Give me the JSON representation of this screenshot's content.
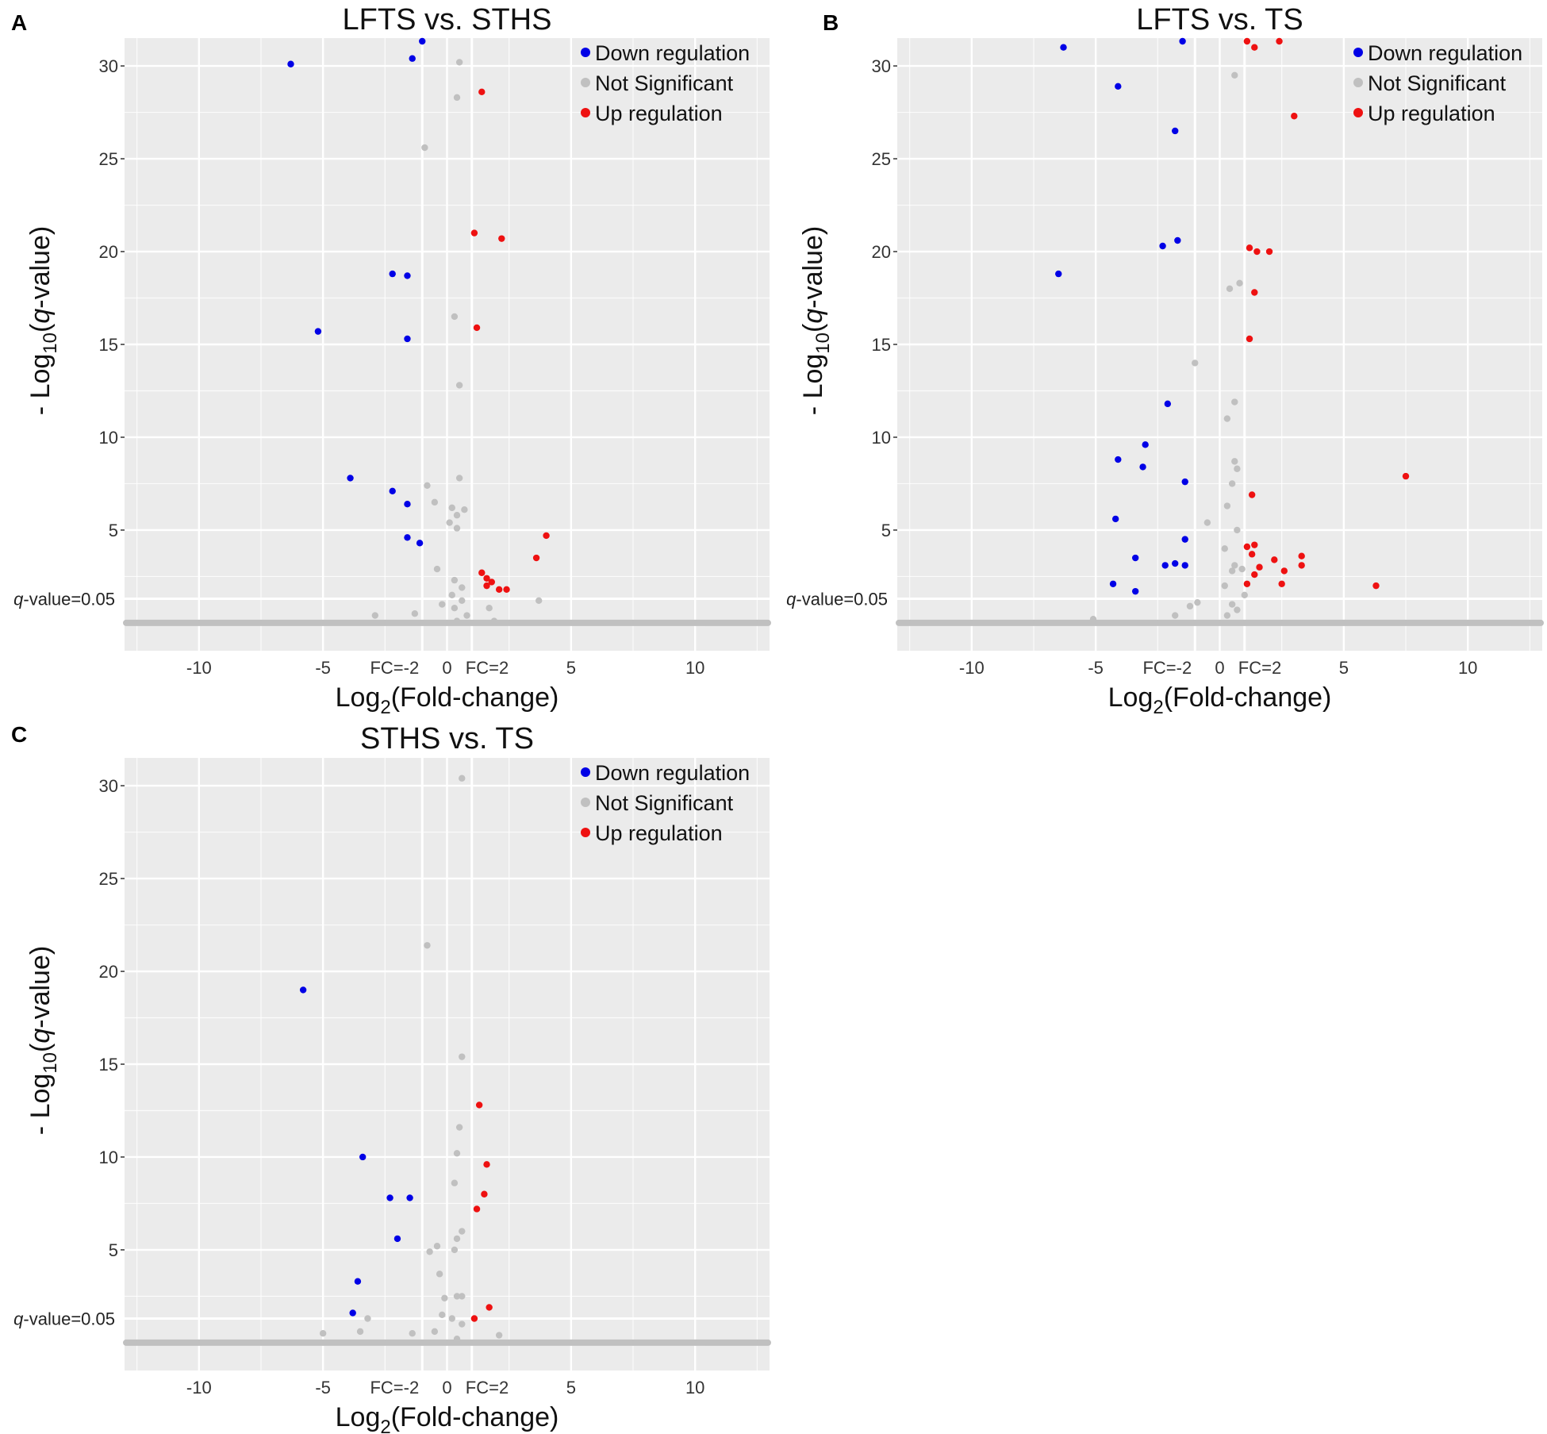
{
  "colors": {
    "down": "#0000e6",
    "ns": "#c0c0c0",
    "up": "#ee1111",
    "panel_bg": "#ebebeb",
    "grid": "#ffffff"
  },
  "chart_data": [
    {
      "type": "scatter",
      "panel": "A",
      "title": "LFTS vs. STHS",
      "xlabel_main": "Log",
      "xlabel_sub": "2",
      "xlabel_tail": "(Fold-change)",
      "ylabel_head": "- Log",
      "ylabel_sub": "10",
      "ylabel_mid": "(",
      "ylabel_italic": "q",
      "ylabel_tail": "-value)",
      "xlim": [
        -13,
        13
      ],
      "ylim": [
        -1.5,
        31.5
      ],
      "x_ticks": [
        -10,
        -5,
        0,
        5,
        10
      ],
      "y_ticks": [
        5,
        10,
        15,
        20,
        25,
        30
      ],
      "fc_labels": {
        "neg": "FC=-2",
        "zero": "0",
        "pos": "FC=2"
      },
      "threshold_label_italic": "q",
      "threshold_label_tail": "-value=0.05",
      "threshold_y": 1.3,
      "legend": [
        "Down regulation",
        "Not Significant",
        "Up regulation"
      ],
      "series": [
        {
          "name": "Down regulation",
          "points": [
            [
              -1,
              31.5
            ],
            [
              -6.3,
              30.1
            ],
            [
              -1.4,
              30.4
            ],
            [
              -2.2,
              18.8
            ],
            [
              -1.6,
              18.7
            ],
            [
              -5.2,
              15.7
            ],
            [
              -1.6,
              15.3
            ],
            [
              -3.9,
              7.8
            ],
            [
              -2.2,
              7.1
            ],
            [
              -1.6,
              6.4
            ],
            [
              -1.6,
              4.6
            ],
            [
              -1.1,
              4.3
            ]
          ]
        },
        {
          "name": "Not Significant",
          "points": [
            [
              0.5,
              30.2
            ],
            [
              0.4,
              28.3
            ],
            [
              -0.9,
              25.6
            ],
            [
              0.3,
              16.5
            ],
            [
              0.5,
              12.8
            ],
            [
              -0.8,
              7.4
            ],
            [
              0.5,
              7.8
            ],
            [
              -0.5,
              6.5
            ],
            [
              0.2,
              6.2
            ],
            [
              0.7,
              6.1
            ],
            [
              0.4,
              5.8
            ],
            [
              0.1,
              5.4
            ],
            [
              0.4,
              5.1
            ],
            [
              -0.4,
              2.9
            ],
            [
              0.3,
              2.3
            ],
            [
              0.6,
              1.9
            ],
            [
              0.2,
              1.5
            ],
            [
              0.6,
              1.2
            ],
            [
              0.3,
              0.8
            ],
            [
              -0.2,
              1.0
            ],
            [
              1.7,
              0.8
            ],
            [
              3.7,
              1.2
            ],
            [
              -2.9,
              0.4
            ],
            [
              -1.3,
              0.5
            ],
            [
              0.4,
              0.1
            ],
            [
              1.9,
              0.1
            ],
            [
              0.8,
              0.4
            ]
          ]
        },
        {
          "name": "Up regulation",
          "points": [
            [
              1.4,
              28.6
            ],
            [
              1.1,
              21.0
            ],
            [
              2.2,
              20.7
            ],
            [
              1.2,
              15.9
            ],
            [
              4,
              4.7
            ],
            [
              3.6,
              3.5
            ],
            [
              1.4,
              2.7
            ],
            [
              1.6,
              2.4
            ],
            [
              1.8,
              2.2
            ],
            [
              1.6,
              2.0
            ],
            [
              2.1,
              1.8
            ],
            [
              2.4,
              1.8
            ]
          ]
        }
      ]
    },
    {
      "type": "scatter",
      "panel": "B",
      "title": "LFTS vs. TS",
      "xlabel_main": "Log",
      "xlabel_sub": "2",
      "xlabel_tail": "(Fold-change)",
      "ylabel_head": "- Log",
      "ylabel_sub": "10",
      "ylabel_mid": "(",
      "ylabel_italic": "q",
      "ylabel_tail": "-value)",
      "xlim": [
        -13,
        13
      ],
      "ylim": [
        -1.5,
        31.5
      ],
      "x_ticks": [
        -10,
        -5,
        0,
        5,
        10
      ],
      "y_ticks": [
        5,
        10,
        15,
        20,
        25,
        30
      ],
      "fc_labels": {
        "neg": "FC=-2",
        "zero": "0",
        "pos": "FC=2"
      },
      "threshold_label_italic": "q",
      "threshold_label_tail": "-value=0.05",
      "threshold_y": 1.3,
      "legend": [
        "Down regulation",
        "Not Significant",
        "Up regulation"
      ],
      "series": [
        {
          "name": "Down regulation",
          "points": [
            [
              -1.5,
              31.5
            ],
            [
              -6.3,
              31.0
            ],
            [
              -4.1,
              28.9
            ],
            [
              -1.8,
              26.5
            ],
            [
              -2.3,
              20.3
            ],
            [
              -1.7,
              20.6
            ],
            [
              -6.5,
              18.8
            ],
            [
              -2.1,
              11.8
            ],
            [
              -4.1,
              8.8
            ],
            [
              -3,
              9.6
            ],
            [
              -3.1,
              8.4
            ],
            [
              -1.4,
              7.6
            ],
            [
              -4.2,
              5.6
            ],
            [
              -1.4,
              4.5
            ],
            [
              -3.4,
              3.5
            ],
            [
              -2.2,
              3.1
            ],
            [
              -1.8,
              3.2
            ],
            [
              -1.4,
              3.1
            ],
            [
              -4.3,
              2.1
            ],
            [
              -3.4,
              1.7
            ]
          ]
        },
        {
          "name": "Not Significant",
          "points": [
            [
              0.6,
              29.5
            ],
            [
              0.8,
              18.3
            ],
            [
              0.4,
              18.0
            ],
            [
              -1,
              14.0
            ],
            [
              0.6,
              11.9
            ],
            [
              0.3,
              11.0
            ],
            [
              0.6,
              8.7
            ],
            [
              0.7,
              8.3
            ],
            [
              0.5,
              7.5
            ],
            [
              0.3,
              6.3
            ],
            [
              -0.5,
              5.4
            ],
            [
              0.7,
              5.0
            ],
            [
              0.2,
              4.0
            ],
            [
              0.6,
              3.1
            ],
            [
              0.5,
              2.8
            ],
            [
              0.9,
              2.9
            ],
            [
              0.2,
              2.0
            ],
            [
              1,
              1.5
            ],
            [
              0.5,
              1.0
            ],
            [
              0.7,
              0.7
            ],
            [
              -1.2,
              0.9
            ],
            [
              -1.8,
              0.4
            ],
            [
              -5.1,
              0.2
            ],
            [
              -0.9,
              1.1
            ],
            [
              0.3,
              0.4
            ]
          ]
        },
        {
          "name": "Up regulation",
          "points": [
            [
              1.1,
              31.5
            ],
            [
              2.4,
              31.5
            ],
            [
              1.4,
              31.0
            ],
            [
              3,
              27.3
            ],
            [
              1.2,
              20.2
            ],
            [
              1.5,
              20.0
            ],
            [
              2,
              20.0
            ],
            [
              1.4,
              17.8
            ],
            [
              1.2,
              15.3
            ],
            [
              1.3,
              6.9
            ],
            [
              1.1,
              4.1
            ],
            [
              1.4,
              4.2
            ],
            [
              1.3,
              3.7
            ],
            [
              1.6,
              3.0
            ],
            [
              2.2,
              3.4
            ],
            [
              3.3,
              3.6
            ],
            [
              3.3,
              3.1
            ],
            [
              2.6,
              2.8
            ],
            [
              1.4,
              2.6
            ],
            [
              1.1,
              2.1
            ],
            [
              2.5,
              2.1
            ],
            [
              6.3,
              2.0
            ],
            [
              7.5,
              7.9
            ]
          ]
        }
      ]
    },
    {
      "type": "scatter",
      "panel": "C",
      "title": "STHS vs. TS",
      "xlabel_main": "Log",
      "xlabel_sub": "2",
      "xlabel_tail": "(Fold-change)",
      "ylabel_head": "- Log",
      "ylabel_sub": "10",
      "ylabel_mid": "(",
      "ylabel_italic": "q",
      "ylabel_tail": "-value)",
      "xlim": [
        -13,
        13
      ],
      "ylim": [
        -1.5,
        31.5
      ],
      "x_ticks": [
        -10,
        -5,
        0,
        5,
        10
      ],
      "y_ticks": [
        5,
        10,
        15,
        20,
        25,
        30
      ],
      "fc_labels": {
        "neg": "FC=-2",
        "zero": "0",
        "pos": "FC=2"
      },
      "threshold_label_italic": "q",
      "threshold_label_tail": "-value=0.05",
      "threshold_y": 1.3,
      "legend": [
        "Down regulation",
        "Not Significant",
        "Up regulation"
      ],
      "series": [
        {
          "name": "Down regulation",
          "points": [
            [
              -5.8,
              19.0
            ],
            [
              -3.4,
              10.0
            ],
            [
              -2.3,
              7.8
            ],
            [
              -1.5,
              7.8
            ],
            [
              -2,
              5.6
            ],
            [
              -3.6,
              3.3
            ],
            [
              -3.8,
              1.6
            ]
          ]
        },
        {
          "name": "Not Significant",
          "points": [
            [
              0.6,
              30.4
            ],
            [
              -0.8,
              21.4
            ],
            [
              0.6,
              15.4
            ],
            [
              0.5,
              11.6
            ],
            [
              0.4,
              10.2
            ],
            [
              0.3,
              8.6
            ],
            [
              0.6,
              6.0
            ],
            [
              0.4,
              5.6
            ],
            [
              -0.4,
              5.2
            ],
            [
              -0.7,
              4.9
            ],
            [
              0.3,
              5.0
            ],
            [
              -0.3,
              3.7
            ],
            [
              0.4,
              2.5
            ],
            [
              0.6,
              2.5
            ],
            [
              -0.1,
              2.4
            ],
            [
              -0.2,
              1.5
            ],
            [
              0.2,
              1.3
            ],
            [
              0.6,
              1.0
            ],
            [
              -3.2,
              1.3
            ],
            [
              -3.5,
              0.6
            ],
            [
              -5,
              0.5
            ],
            [
              -0.5,
              0.6
            ],
            [
              -1.4,
              0.5
            ],
            [
              2.1,
              0.4
            ],
            [
              0.4,
              0.2
            ]
          ]
        },
        {
          "name": "Up regulation",
          "points": [
            [
              1.3,
              12.8
            ],
            [
              1.6,
              9.6
            ],
            [
              1.5,
              8.0
            ],
            [
              1.2,
              7.2
            ],
            [
              1.7,
              1.9
            ],
            [
              1.1,
              1.3
            ]
          ]
        }
      ]
    }
  ]
}
